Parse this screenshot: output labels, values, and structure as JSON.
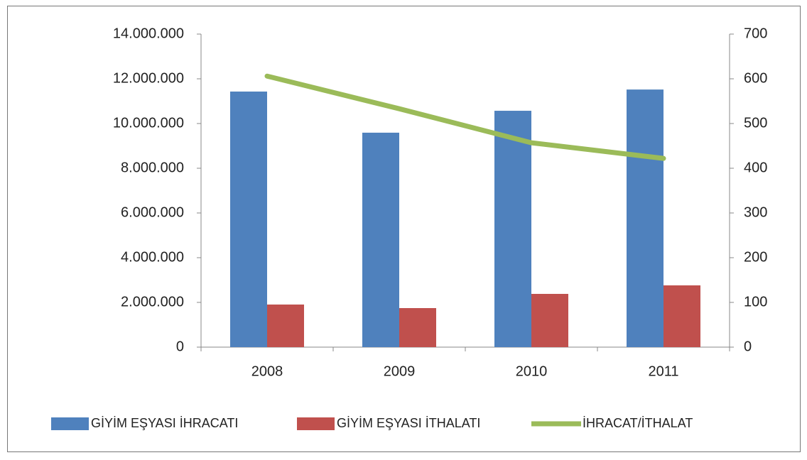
{
  "chart_data": {
    "type": "bar",
    "categories": [
      "2008",
      "2009",
      "2010",
      "2011"
    ],
    "series": [
      {
        "name": "GİYİM EŞYASI İHRACATI",
        "color": "#4f81bd",
        "values": [
          11430000,
          9590000,
          10570000,
          11520000
        ]
      },
      {
        "name": "GİYİM EŞYASI İTHALATI",
        "color": "#c0504d",
        "values": [
          1905000,
          1746000,
          2381000,
          2762000
        ]
      },
      {
        "name": "İHRACAT/İTHALAT",
        "color": "#9bbb59",
        "type": "line",
        "axis": "y2",
        "values": [
          606,
          533,
          457,
          422
        ]
      }
    ],
    "ylim": [
      0,
      14000000
    ],
    "yticks": [
      {
        "value": 0,
        "label": "0"
      },
      {
        "value": 2000000,
        "label": "2.000.000"
      },
      {
        "value": 4000000,
        "label": "4.000.000"
      },
      {
        "value": 6000000,
        "label": "6.000.000"
      },
      {
        "value": 8000000,
        "label": "8.000.000"
      },
      {
        "value": 10000000,
        "label": "10.000.000"
      },
      {
        "value": 12000000,
        "label": "12.000.000"
      },
      {
        "value": 14000000,
        "label": "14.000.000"
      }
    ],
    "y2lim": [
      0,
      700
    ],
    "y2ticks": [
      0,
      100,
      200,
      300,
      400,
      500,
      600,
      700
    ],
    "grid": false,
    "legend": "bottom"
  }
}
